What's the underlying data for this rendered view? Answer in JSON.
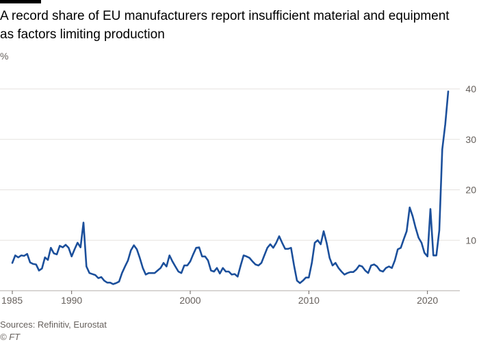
{
  "title": "A record share of EU manufacturers report insufficient material and equipment as factors limiting production",
  "unit_label": "%",
  "source": "Sources: Refinitiv, Eurostat",
  "credit": "© FT",
  "colors": {
    "line": "#1b4f9b",
    "grid": "#e5e2df",
    "text": "#66605c"
  },
  "chart_data": {
    "type": "line",
    "title": "A record share of EU manufacturers report insufficient material and equipment as factors limiting production",
    "xlabel": "",
    "ylabel": "%",
    "xlim": [
      1985,
      2022.5
    ],
    "ylim": [
      0,
      40
    ],
    "x_ticks": [
      1985,
      1990,
      2000,
      2010,
      2020
    ],
    "y_ticks": [
      10,
      20,
      30,
      40
    ],
    "grid": true,
    "series": [
      {
        "values": [
          [
            1985.0,
            5.5
          ],
          [
            1985.25,
            7.0
          ],
          [
            1985.5,
            6.6
          ],
          [
            1985.75,
            7.0
          ],
          [
            1986.0,
            6.9
          ],
          [
            1986.25,
            7.3
          ],
          [
            1986.5,
            5.6
          ],
          [
            1986.75,
            5.3
          ],
          [
            1987.0,
            5.2
          ],
          [
            1987.25,
            4.0
          ],
          [
            1987.5,
            4.4
          ],
          [
            1987.75,
            6.6
          ],
          [
            1988.0,
            6.1
          ],
          [
            1988.25,
            8.5
          ],
          [
            1988.5,
            7.4
          ],
          [
            1988.75,
            7.2
          ],
          [
            1989.0,
            8.9
          ],
          [
            1989.25,
            8.6
          ],
          [
            1989.5,
            9.1
          ],
          [
            1989.75,
            8.5
          ],
          [
            1990.0,
            6.8
          ],
          [
            1990.25,
            8.2
          ],
          [
            1990.5,
            9.5
          ],
          [
            1990.75,
            8.6
          ],
          [
            1991.0,
            13.5
          ],
          [
            1991.25,
            4.8
          ],
          [
            1991.5,
            3.5
          ],
          [
            1991.75,
            3.3
          ],
          [
            1992.0,
            3.1
          ],
          [
            1992.25,
            2.5
          ],
          [
            1992.5,
            2.7
          ],
          [
            1992.75,
            2.0
          ],
          [
            1993.0,
            1.6
          ],
          [
            1993.25,
            1.6
          ],
          [
            1993.5,
            1.3
          ],
          [
            1993.75,
            1.5
          ],
          [
            1994.0,
            1.8
          ],
          [
            1994.25,
            3.5
          ],
          [
            1994.5,
            4.8
          ],
          [
            1994.75,
            6.0
          ],
          [
            1995.0,
            8.0
          ],
          [
            1995.25,
            9.0
          ],
          [
            1995.5,
            8.2
          ],
          [
            1995.75,
            6.5
          ],
          [
            1996.0,
            4.5
          ],
          [
            1996.25,
            3.2
          ],
          [
            1996.5,
            3.5
          ],
          [
            1996.75,
            3.5
          ],
          [
            1997.0,
            3.5
          ],
          [
            1997.25,
            4.0
          ],
          [
            1997.5,
            4.5
          ],
          [
            1997.75,
            5.5
          ],
          [
            1998.0,
            4.8
          ],
          [
            1998.25,
            7.0
          ],
          [
            1998.5,
            5.8
          ],
          [
            1998.75,
            4.8
          ],
          [
            1999.0,
            3.8
          ],
          [
            1999.25,
            3.5
          ],
          [
            1999.5,
            5.0
          ],
          [
            1999.75,
            5.0
          ],
          [
            2000.0,
            5.8
          ],
          [
            2000.25,
            7.2
          ],
          [
            2000.5,
            8.5
          ],
          [
            2000.75,
            8.6
          ],
          [
            2001.0,
            6.8
          ],
          [
            2001.25,
            6.8
          ],
          [
            2001.5,
            6.0
          ],
          [
            2001.75,
            4.0
          ],
          [
            2002.0,
            3.8
          ],
          [
            2002.25,
            4.5
          ],
          [
            2002.5,
            3.4
          ],
          [
            2002.75,
            4.5
          ],
          [
            2003.0,
            3.8
          ],
          [
            2003.25,
            3.8
          ],
          [
            2003.5,
            3.2
          ],
          [
            2003.75,
            3.3
          ],
          [
            2004.0,
            2.8
          ],
          [
            2004.25,
            5.0
          ],
          [
            2004.5,
            7.0
          ],
          [
            2004.75,
            6.8
          ],
          [
            2005.0,
            6.5
          ],
          [
            2005.25,
            5.8
          ],
          [
            2005.5,
            5.2
          ],
          [
            2005.75,
            5.0
          ],
          [
            2006.0,
            5.5
          ],
          [
            2006.25,
            7.0
          ],
          [
            2006.5,
            8.5
          ],
          [
            2006.75,
            9.2
          ],
          [
            2007.0,
            8.5
          ],
          [
            2007.25,
            9.5
          ],
          [
            2007.5,
            10.8
          ],
          [
            2007.75,
            9.5
          ],
          [
            2008.0,
            8.3
          ],
          [
            2008.25,
            8.3
          ],
          [
            2008.5,
            8.5
          ],
          [
            2008.75,
            5.0
          ],
          [
            2009.0,
            2.0
          ],
          [
            2009.25,
            1.5
          ],
          [
            2009.5,
            2.0
          ],
          [
            2009.75,
            2.6
          ],
          [
            2010.0,
            2.6
          ],
          [
            2010.25,
            5.5
          ],
          [
            2010.5,
            9.5
          ],
          [
            2010.75,
            10.0
          ],
          [
            2011.0,
            9.2
          ],
          [
            2011.25,
            11.8
          ],
          [
            2011.5,
            9.5
          ],
          [
            2011.75,
            6.5
          ],
          [
            2012.0,
            5.0
          ],
          [
            2012.25,
            5.5
          ],
          [
            2012.5,
            4.5
          ],
          [
            2012.75,
            3.8
          ],
          [
            2013.0,
            3.2
          ],
          [
            2013.25,
            3.5
          ],
          [
            2013.5,
            3.7
          ],
          [
            2013.75,
            3.7
          ],
          [
            2014.0,
            4.2
          ],
          [
            2014.25,
            5.0
          ],
          [
            2014.5,
            4.8
          ],
          [
            2014.75,
            4.0
          ],
          [
            2015.0,
            3.5
          ],
          [
            2015.25,
            5.0
          ],
          [
            2015.5,
            5.2
          ],
          [
            2015.75,
            4.8
          ],
          [
            2016.0,
            4.0
          ],
          [
            2016.25,
            3.8
          ],
          [
            2016.5,
            4.5
          ],
          [
            2016.75,
            4.8
          ],
          [
            2017.0,
            4.5
          ],
          [
            2017.25,
            6.0
          ],
          [
            2017.5,
            8.2
          ],
          [
            2017.75,
            8.5
          ],
          [
            2018.0,
            10.2
          ],
          [
            2018.25,
            11.8
          ],
          [
            2018.5,
            16.5
          ],
          [
            2018.75,
            14.8
          ],
          [
            2019.0,
            12.5
          ],
          [
            2019.25,
            10.5
          ],
          [
            2019.5,
            9.5
          ],
          [
            2019.75,
            7.5
          ],
          [
            2020.0,
            6.8
          ],
          [
            2020.25,
            16.2
          ],
          [
            2020.5,
            7.0
          ],
          [
            2020.75,
            7.0
          ],
          [
            2021.0,
            12.0
          ],
          [
            2021.25,
            28.0
          ],
          [
            2021.5,
            33.0
          ],
          [
            2021.75,
            39.5
          ]
        ]
      }
    ]
  }
}
